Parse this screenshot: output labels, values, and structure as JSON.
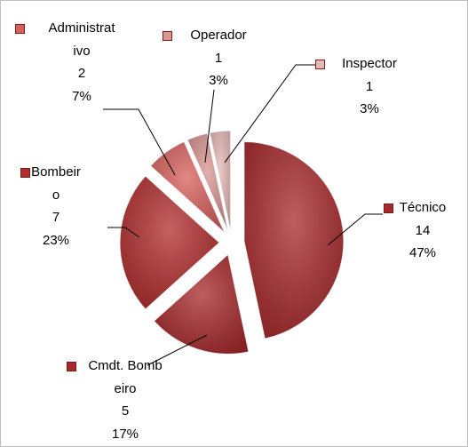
{
  "chart_data": {
    "type": "pie",
    "categories": [
      "Técnico",
      "Cmdt. Bombeiro",
      "Bombeiro",
      "Administrativo",
      "Operador",
      "Inspector"
    ],
    "values": [
      14,
      5,
      7,
      2,
      1,
      1
    ],
    "percentages": [
      47,
      17,
      23,
      7,
      3,
      3
    ],
    "percentage_labels": [
      "47%",
      "17%",
      "23%",
      "7%",
      "3%",
      "3%"
    ],
    "colors": [
      "#a8292b",
      "#a8292b",
      "#b22d2d",
      "#d8605c",
      "#d99591",
      "#e6b9b6"
    ],
    "legend": "beside-slices"
  }
}
